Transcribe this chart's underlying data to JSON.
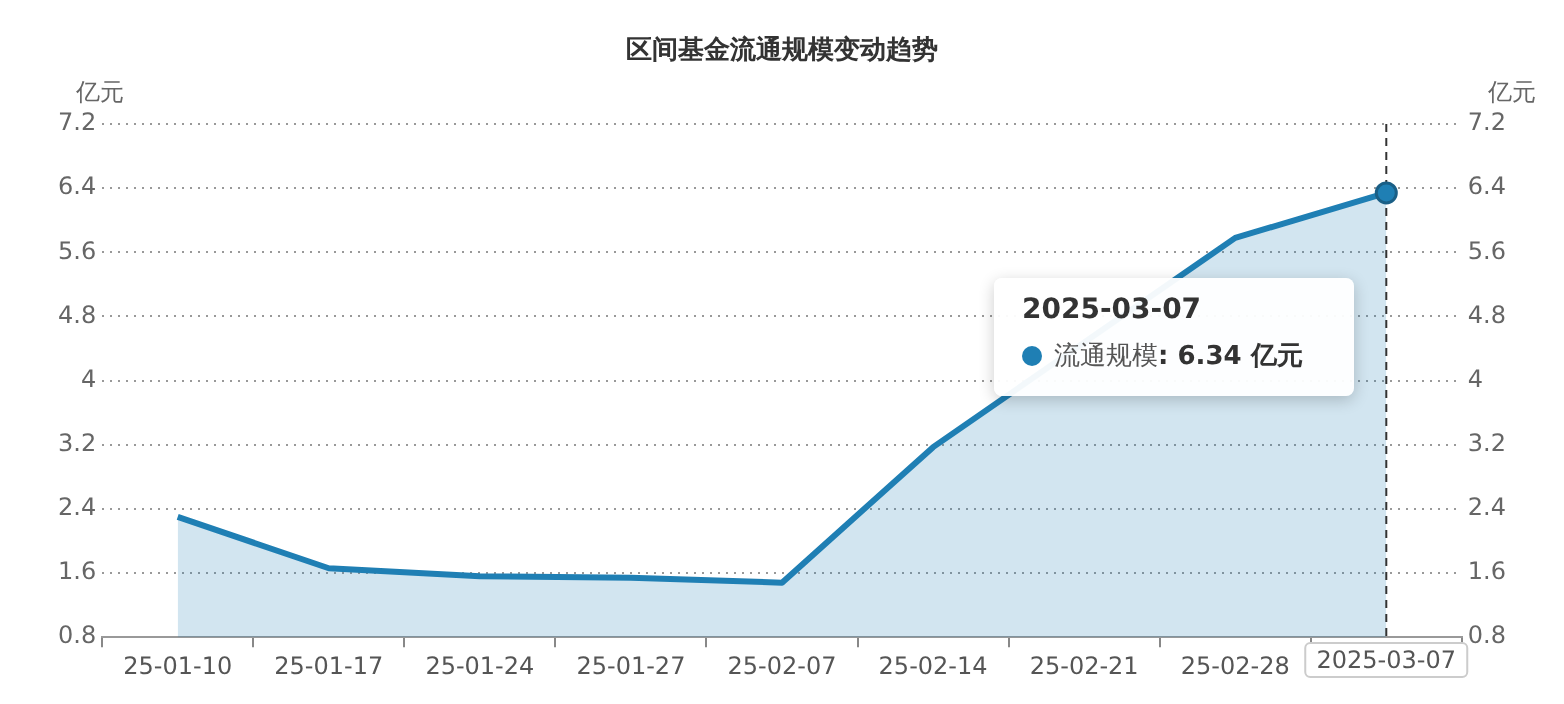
{
  "chart_data": {
    "type": "area",
    "title": "区间基金流通规模变动趋势",
    "ylabel": "亿元",
    "y2label": "亿元",
    "categories": [
      "25-01-10",
      "25-01-17",
      "25-01-24",
      "25-01-27",
      "25-02-07",
      "25-02-14",
      "25-02-21",
      "25-02-28",
      "2025-03-07"
    ],
    "series": [
      {
        "name": "流通规模",
        "color": "#1f7fb4",
        "values": [
          2.3,
          1.66,
          1.56,
          1.54,
          1.48,
          3.17,
          null,
          5.78,
          6.34
        ]
      }
    ],
    "ylim": [
      0.8,
      7.2
    ],
    "yticks": [
      0.8,
      1.6,
      2.4,
      3.2,
      4,
      4.8,
      5.6,
      6.4,
      7.2
    ],
    "y2lim": [
      0.8,
      7.2
    ],
    "y2ticks": [
      0.8,
      1.6,
      2.4,
      3.2,
      4,
      4.8,
      5.6,
      6.4,
      7.2
    ],
    "grid": "y",
    "legend": "right",
    "marker": "none",
    "line_style": "solid",
    "ref_lines": [
      {
        "axis": "x",
        "value": "2025-03-07",
        "line_style": "dashed",
        "color": "#333333"
      }
    ],
    "annotations": [
      "2025-03-07",
      ": 6.34  亿元"
    ]
  }
}
